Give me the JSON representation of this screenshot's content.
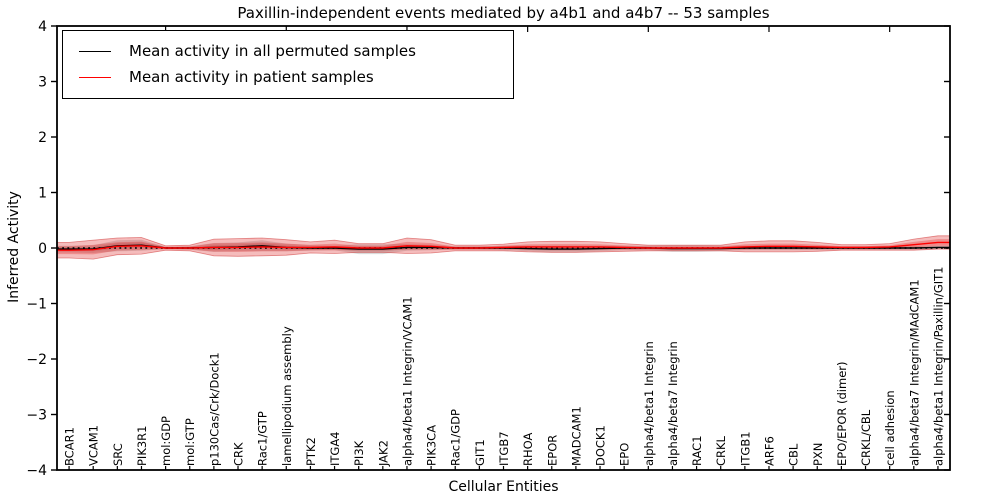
{
  "figure": {
    "title": "Paxillin-independent events mediated by a4b1 and a4b7 -- 53 samples",
    "xlabel": "Cellular Entities",
    "ylabel": "Inferred Activity"
  },
  "chart_data": {
    "type": "line",
    "title": "Paxillin-independent events mediated by a4b1 and a4b7 -- 53 samples",
    "xlabel": "Cellular Entities",
    "ylabel": "Inferred Activity",
    "ylim": [
      -4,
      4
    ],
    "yticks": [
      -4,
      -3,
      -2,
      -1,
      0,
      1,
      2,
      3,
      4
    ],
    "grid": false,
    "legend_position": "upper left",
    "zero_line": {
      "style": "dotted",
      "color": "#000000",
      "y": 0
    },
    "categories": [
      "BCAR1",
      "VCAM1",
      "SRC",
      "PIK3R1",
      "mol:GDP",
      "mol:GTP",
      "p130Cas/Crk/Dock1",
      "CRK",
      "Rac1/GTP",
      "lamellipodium assembly",
      "PTK2",
      "ITGA4",
      "PI3K",
      "JAK2",
      "alpha4/beta1 Integrin/VCAM1",
      "PIK3CA",
      "Rac1/GDP",
      "GIT1",
      "ITGB7",
      "RHOA",
      "EPOR",
      "MADCAM1",
      "DOCK1",
      "EPO",
      "alpha4/beta1 Integrin",
      "alpha4/beta7 Integrin",
      "RAC1",
      "CRKL",
      "ITGB1",
      "ARF6",
      "CBL",
      "PXN",
      "EPO/EPOR (dimer)",
      "CRKL/CBL",
      "cell adhesion",
      "alpha4/beta7 Integrin/MAdCAM1",
      "alpha4/beta1 Integrin/Paxillin/GIT1"
    ],
    "series": [
      {
        "name": "Mean activity in all permuted samples",
        "color": "#000000",
        "band_color": "#555555",
        "values": [
          -0.02,
          -0.02,
          0.04,
          0.05,
          0.0,
          0.0,
          0.01,
          0.02,
          0.04,
          0.01,
          0.0,
          0.0,
          -0.02,
          -0.02,
          0.01,
          0.01,
          0.0,
          0.0,
          0.0,
          -0.01,
          -0.02,
          -0.02,
          -0.01,
          0.0,
          0.0,
          -0.01,
          -0.01,
          -0.01,
          0.0,
          0.0,
          0.0,
          0.0,
          0.0,
          0.0,
          0.0,
          0.0,
          0.01
        ],
        "band_halfwidth": [
          0.06,
          0.07,
          0.1,
          0.1,
          0.02,
          0.03,
          0.08,
          0.08,
          0.1,
          0.07,
          0.05,
          0.04,
          0.09,
          0.09,
          0.06,
          0.05,
          0.03,
          0.03,
          0.04,
          0.05,
          0.06,
          0.06,
          0.05,
          0.04,
          0.04,
          0.06,
          0.06,
          0.05,
          0.04,
          0.04,
          0.04,
          0.04,
          0.03,
          0.03,
          0.03,
          0.03,
          0.03
        ]
      },
      {
        "name": "Mean activity in patient samples",
        "color": "#ff0000",
        "band_color": "#dd2222",
        "values": [
          -0.04,
          -0.03,
          0.03,
          0.04,
          0.0,
          0.0,
          0.01,
          0.01,
          0.02,
          0.01,
          0.01,
          0.02,
          0.0,
          0.0,
          0.04,
          0.03,
          0.0,
          0.0,
          0.01,
          0.02,
          0.02,
          0.02,
          0.02,
          0.01,
          0.0,
          0.0,
          0.0,
          0.0,
          0.02,
          0.03,
          0.03,
          0.02,
          0.01,
          0.01,
          0.02,
          0.06,
          0.1
        ],
        "band_halfwidth": [
          0.14,
          0.17,
          0.15,
          0.15,
          0.04,
          0.05,
          0.15,
          0.16,
          0.16,
          0.14,
          0.1,
          0.12,
          0.08,
          0.08,
          0.14,
          0.12,
          0.05,
          0.05,
          0.06,
          0.09,
          0.1,
          0.1,
          0.09,
          0.07,
          0.05,
          0.05,
          0.05,
          0.05,
          0.09,
          0.1,
          0.1,
          0.08,
          0.05,
          0.05,
          0.06,
          0.1,
          0.12
        ]
      }
    ]
  },
  "legend": {
    "items": [
      {
        "label": "Mean activity in all permuted samples",
        "color": "#000000"
      },
      {
        "label": "Mean activity in patient samples",
        "color": "#ff0000"
      }
    ]
  }
}
